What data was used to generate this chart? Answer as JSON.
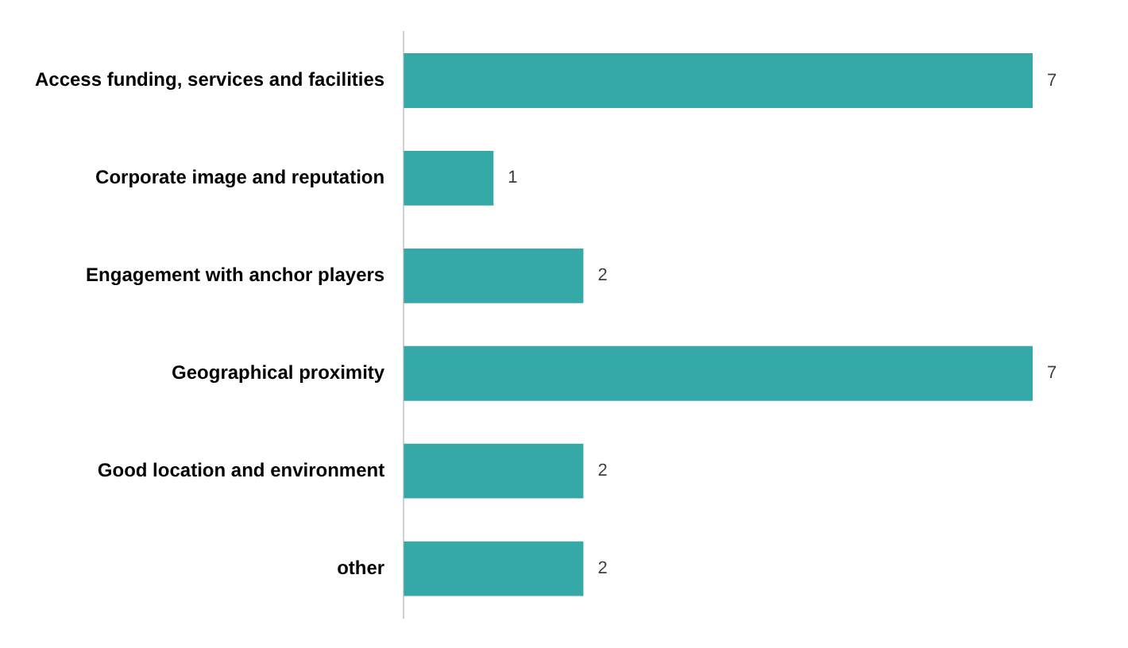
{
  "chart_data": {
    "type": "bar",
    "orientation": "horizontal",
    "categories": [
      "Access funding, services and facilities",
      "Corporate image and reputation",
      "Engagement with anchor players",
      "Geographical proximity",
      "Good location and environment",
      "other"
    ],
    "values": [
      7,
      1,
      2,
      7,
      2,
      2
    ],
    "color": "#35a8a8",
    "data_labels": true,
    "legend": false
  }
}
